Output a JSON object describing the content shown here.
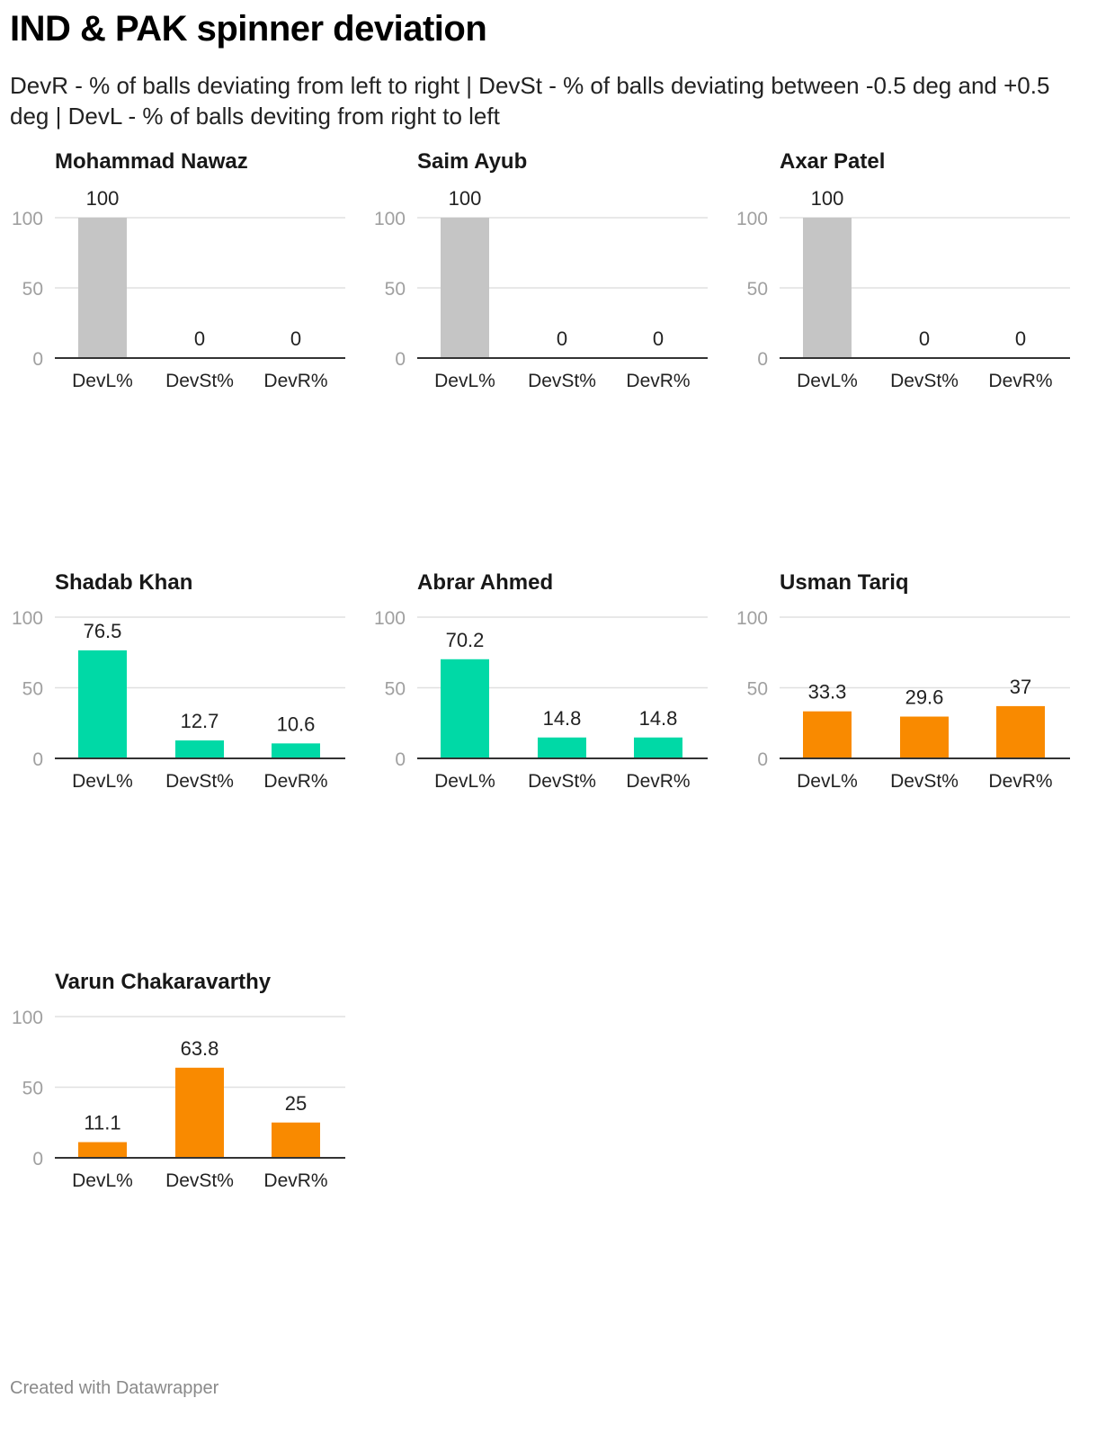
{
  "title": "IND & PAK spinner deviation",
  "subtitle": "DevR - % of balls deviating from left to right | DevSt - % of balls deviating between -0.5 deg and +0.5 deg | DevL - % of balls deviting from right to left",
  "footer": "Created with Datawrapper",
  "colors": {
    "grey": "#c5c5c5",
    "green": "#00d9a6",
    "orange": "#f98a00",
    "grid": "#e0e0e0",
    "axis": "#333333"
  },
  "chart_data": [
    {
      "type": "bar",
      "title": "Mohammad Nawaz",
      "categories": [
        "DevL%",
        "DevSt%",
        "DevR%"
      ],
      "values": [
        100,
        0,
        0
      ],
      "color": "#c5c5c5",
      "ylim": [
        0,
        100
      ],
      "yticks": [
        "0",
        "50",
        "100"
      ],
      "value_labels": [
        "100",
        "0",
        "0"
      ]
    },
    {
      "type": "bar",
      "title": "Saim Ayub",
      "categories": [
        "DevL%",
        "DevSt%",
        "DevR%"
      ],
      "values": [
        100,
        0,
        0
      ],
      "color": "#c5c5c5",
      "ylim": [
        0,
        100
      ],
      "yticks": [
        "0",
        "50",
        "100"
      ],
      "value_labels": [
        "100",
        "0",
        "0"
      ]
    },
    {
      "type": "bar",
      "title": "Axar Patel",
      "categories": [
        "DevL%",
        "DevSt%",
        "DevR%"
      ],
      "values": [
        100,
        0,
        0
      ],
      "color": "#c5c5c5",
      "ylim": [
        0,
        100
      ],
      "yticks": [
        "0",
        "50",
        "100"
      ],
      "value_labels": [
        "100",
        "0",
        "0"
      ]
    },
    {
      "type": "bar",
      "title": "Shadab Khan",
      "categories": [
        "DevL%",
        "DevSt%",
        "DevR%"
      ],
      "values": [
        76.5,
        12.7,
        10.6
      ],
      "color": "#00d9a6",
      "ylim": [
        0,
        100
      ],
      "yticks": [
        "0",
        "50",
        "100"
      ],
      "value_labels": [
        "76.5",
        "12.7",
        "10.6"
      ]
    },
    {
      "type": "bar",
      "title": "Abrar Ahmed",
      "categories": [
        "DevL%",
        "DevSt%",
        "DevR%"
      ],
      "values": [
        70.2,
        14.8,
        14.8
      ],
      "color": "#00d9a6",
      "ylim": [
        0,
        100
      ],
      "yticks": [
        "0",
        "50",
        "100"
      ],
      "value_labels": [
        "70.2",
        "14.8",
        "14.8"
      ]
    },
    {
      "type": "bar",
      "title": "Usman Tariq",
      "categories": [
        "DevL%",
        "DevSt%",
        "DevR%"
      ],
      "values": [
        33.3,
        29.6,
        37
      ],
      "color": "#f98a00",
      "ylim": [
        0,
        100
      ],
      "yticks": [
        "0",
        "50",
        "100"
      ],
      "value_labels": [
        "33.3",
        "29.6",
        "37"
      ]
    },
    {
      "type": "bar",
      "title": "Varun Chakaravarthy",
      "categories": [
        "DevL%",
        "DevSt%",
        "DevR%"
      ],
      "values": [
        11.1,
        63.8,
        25
      ],
      "color": "#f98a00",
      "ylim": [
        0,
        100
      ],
      "yticks": [
        "0",
        "50",
        "100"
      ],
      "value_labels": [
        "11.1",
        "63.8",
        "25"
      ]
    }
  ]
}
